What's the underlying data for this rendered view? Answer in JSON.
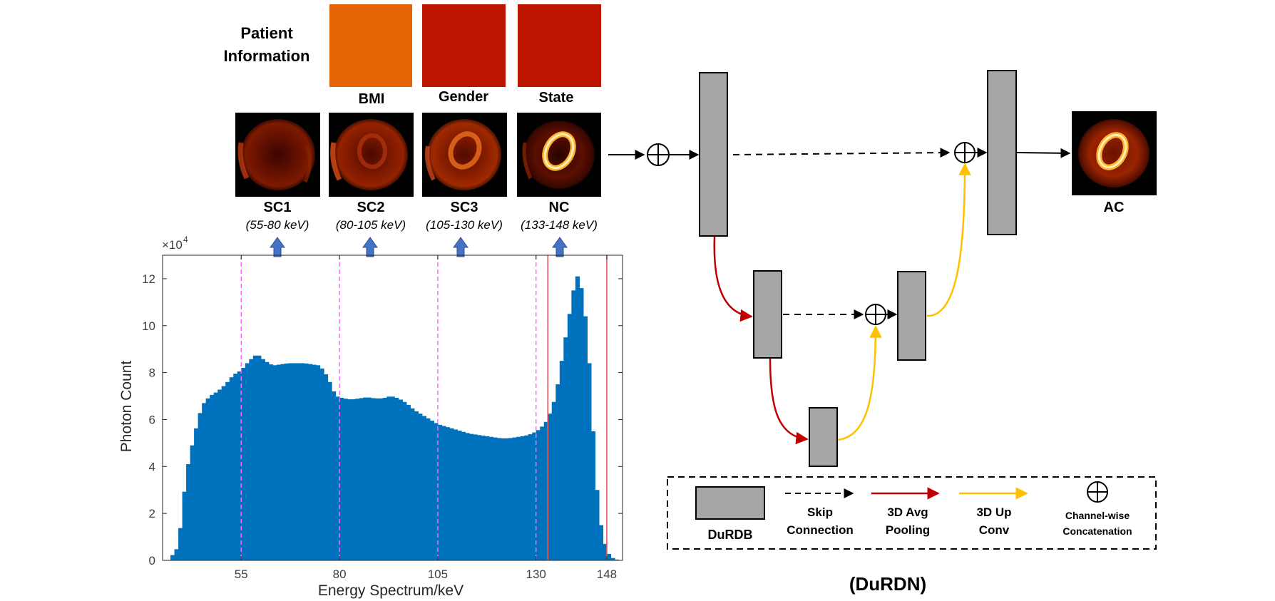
{
  "patient_info": {
    "title_line1": "Patient",
    "title_line2": "Information",
    "blocks": [
      {
        "label": "BMI",
        "color": "#E46404"
      },
      {
        "label": "Gender",
        "color": "#BE1500"
      },
      {
        "label": "State",
        "color": "#BE1500"
      }
    ]
  },
  "windows": [
    {
      "name": "SC1",
      "range": "(55-80 keV)"
    },
    {
      "name": "SC2",
      "range": "(80-105 keV)"
    },
    {
      "name": "SC3",
      "range": "(105-130 keV)"
    },
    {
      "name": "NC",
      "range": "(133-148 keV)"
    }
  ],
  "output_label": "AC",
  "network_title": "(DuRDN)",
  "legend": {
    "durdb": "DuRDB",
    "skip_1": "Skip",
    "skip_2": "Connection",
    "pool_1": "3D Avg",
    "pool_2": "Pooling",
    "up_1": "3D Up",
    "up_2": "Conv",
    "concat_1": "Channel-wise",
    "concat_2": "Concatenation"
  },
  "colors": {
    "block_gray": "#A6A6A6",
    "pool_arrow": "#C00000",
    "up_arrow": "#FFC000",
    "hist_bar": "#0072BD",
    "window_line": "#FF66FF",
    "photopeak_line": "#E0595E",
    "spectrum_arrow": "#4472C4"
  },
  "chart_data": {
    "type": "bar",
    "ylabel": "Photon Count",
    "xlabel": "Energy Spectrum/keV",
    "y_scale_label": "×10",
    "y_scale_exp": "4",
    "xlim": [
      35,
      152
    ],
    "ylim": [
      0,
      13
    ],
    "yticks": [
      0,
      2,
      4,
      6,
      8,
      10,
      12
    ],
    "xticks": [
      55,
      80,
      105,
      130,
      148
    ],
    "dashed_lines_x": [
      55,
      80,
      105,
      130
    ],
    "solid_lines_x": [
      133,
      148
    ],
    "profile_keV": [
      37,
      39,
      41,
      43,
      45,
      47,
      49,
      51,
      53,
      55,
      57,
      59,
      61,
      63,
      65,
      67,
      69,
      71,
      73,
      75,
      77,
      79,
      81,
      83,
      85,
      87,
      89,
      91,
      93,
      95,
      97,
      99,
      101,
      103,
      105,
      107,
      109,
      111,
      113,
      115,
      117,
      119,
      121,
      123,
      125,
      127,
      129,
      131,
      133,
      135,
      137,
      138,
      139,
      140,
      141,
      142,
      143,
      144,
      145,
      146,
      147,
      148,
      149,
      150,
      151,
      152
    ],
    "profile_counts": [
      0.1,
      0.6,
      3.7,
      5.3,
      6.6,
      7.0,
      7.2,
      7.5,
      7.9,
      8.1,
      8.5,
      8.8,
      8.5,
      8.3,
      8.35,
      8.4,
      8.4,
      8.4,
      8.35,
      8.3,
      7.8,
      7.0,
      6.9,
      6.85,
      6.9,
      6.95,
      6.9,
      6.9,
      7.0,
      6.9,
      6.7,
      6.4,
      6.2,
      6.0,
      5.8,
      5.7,
      5.6,
      5.5,
      5.4,
      5.35,
      5.3,
      5.25,
      5.2,
      5.2,
      5.25,
      5.3,
      5.4,
      5.6,
      6.0,
      7.0,
      9.0,
      10.0,
      11.0,
      12.0,
      12.2,
      11.0,
      9.8,
      7.0,
      4.0,
      2.0,
      1.0,
      0.4,
      0.15,
      0.05,
      0.02,
      0.0
    ]
  }
}
